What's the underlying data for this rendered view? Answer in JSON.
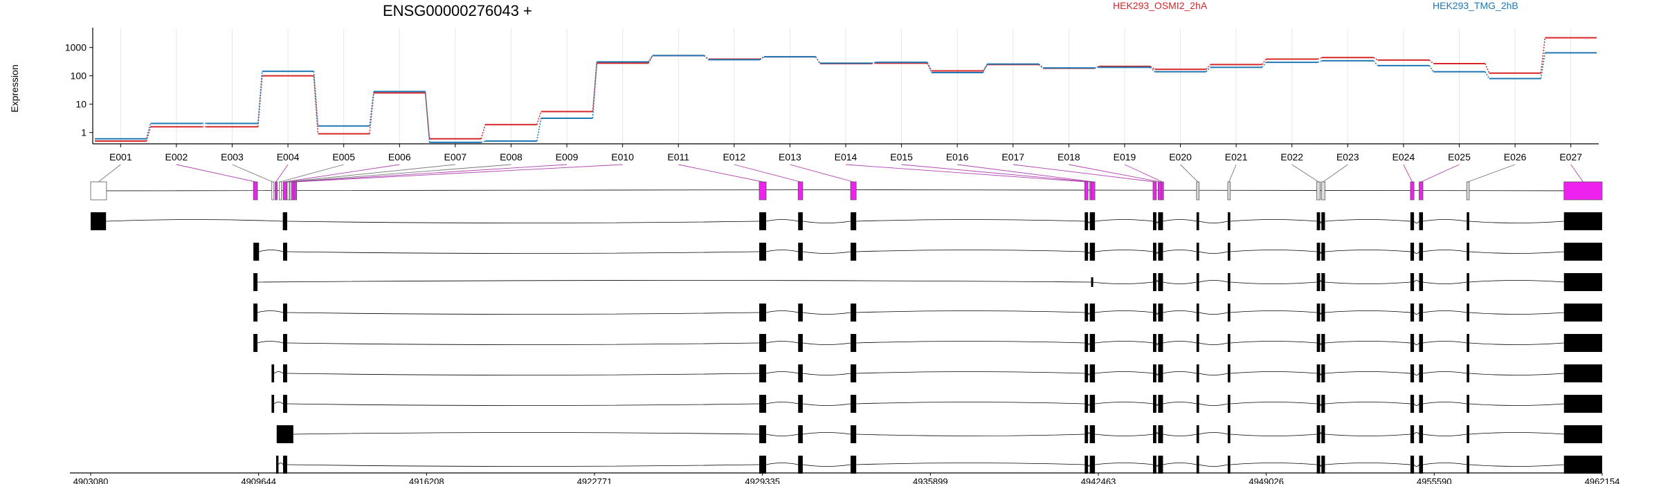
{
  "chart_data": {
    "type": "line",
    "title": "ENSG00000276043 +",
    "ylabel": "Expression",
    "y_scale": "log",
    "y_ticks": [
      1,
      10,
      100,
      1000
    ],
    "y_tick_labels": [
      "1",
      "10",
      "100",
      "1000"
    ],
    "grid": "vertical lines at exon centers",
    "legend_placement": "top-right",
    "exons": [
      "E001",
      "E002",
      "E003",
      "E004",
      "E005",
      "E006",
      "E007",
      "E008",
      "E009",
      "E010",
      "E011",
      "E012",
      "E013",
      "E014",
      "E015",
      "E016",
      "E017",
      "E018",
      "E019",
      "E020",
      "E021",
      "E022",
      "E023",
      "E024",
      "E025",
      "E026",
      "E027"
    ],
    "series": [
      {
        "name": "HEK293_OSMI2_2hA",
        "color": "#d62728",
        "values": [
          0.5,
          1.6,
          1.6,
          100,
          0.9,
          25,
          0.6,
          1.9,
          5.5,
          280,
          520,
          390,
          470,
          270,
          280,
          150,
          250,
          185,
          215,
          170,
          250,
          390,
          440,
          360,
          270,
          125,
          2200
        ]
      },
      {
        "name": "HEK293_TMG_2hB",
        "color": "#1f77b4",
        "values": [
          0.6,
          2.1,
          2.1,
          145,
          1.7,
          28,
          0.45,
          0.5,
          3.2,
          310,
          520,
          370,
          470,
          280,
          300,
          130,
          260,
          190,
          200,
          140,
          200,
          300,
          340,
          230,
          140,
          80,
          650
        ]
      }
    ],
    "genomic_axis": {
      "start": 4903080,
      "end": 4962154,
      "tick_labels": [
        "4903080",
        "4909644",
        "4916208",
        "4922771",
        "4929335",
        "4935899",
        "4942463",
        "4949026",
        "4955590",
        "4962154"
      ]
    },
    "exon_features": [
      {
        "id": "E001",
        "start": 4903080,
        "end": 4903700,
        "color": "#ffffff"
      },
      {
        "id": "E002",
        "start": 4909440,
        "end": 4909600,
        "color": "#ee22ee"
      },
      {
        "id": "E003",
        "start": 4910160,
        "end": 4910220,
        "color": "#ffffff"
      },
      {
        "id": "E004",
        "start": 4910290,
        "end": 4910350,
        "color": "#ee22ee"
      },
      {
        "id": "E005",
        "start": 4910450,
        "end": 4910530,
        "color": "#ffffff"
      },
      {
        "id": "E006",
        "start": 4910600,
        "end": 4910750,
        "color": "#ee22ee"
      },
      {
        "id": "E007",
        "start": 4910760,
        "end": 4910800,
        "color": "#ffffff"
      },
      {
        "id": "E008",
        "start": 4910870,
        "end": 4910930,
        "color": "#ffffff"
      },
      {
        "id": "E009",
        "start": 4910930,
        "end": 4911030,
        "color": "#ee22ee"
      },
      {
        "id": "E010",
        "start": 4911030,
        "end": 4911130,
        "color": "#ee22ee"
      },
      {
        "id": "E011",
        "start": 4929210,
        "end": 4929480,
        "color": "#ee22ee"
      },
      {
        "id": "E012",
        "start": 4930730,
        "end": 4930910,
        "color": "#ee22ee"
      },
      {
        "id": "E013",
        "start": 4932780,
        "end": 4933000,
        "color": "#ee22ee"
      },
      {
        "id": "E014",
        "start": 4941930,
        "end": 4942060,
        "color": "#ee22ee"
      },
      {
        "id": "E015",
        "start": 4942130,
        "end": 4942200,
        "color": "#ee22ee"
      },
      {
        "id": "E016",
        "start": 4942200,
        "end": 4942330,
        "color": "#ee22ee"
      },
      {
        "id": "E017",
        "start": 4944600,
        "end": 4944730,
        "color": "#ee22ee"
      },
      {
        "id": "E018",
        "start": 4944800,
        "end": 4944930,
        "color": "#ee22ee"
      },
      {
        "id": "E019",
        "start": 4944930,
        "end": 4944990,
        "color": "#ee22ee"
      },
      {
        "id": "E020",
        "start": 4946300,
        "end": 4946400,
        "color": "#dddddd"
      },
      {
        "id": "E021",
        "start": 4947520,
        "end": 4947620,
        "color": "#dddddd"
      },
      {
        "id": "E022",
        "start": 4951000,
        "end": 4951130,
        "color": "#dddddd"
      },
      {
        "id": "E023",
        "start": 4951180,
        "end": 4951320,
        "color": "#dddddd"
      },
      {
        "id": "E024",
        "start": 4954660,
        "end": 4954800,
        "color": "#ee22ee"
      },
      {
        "id": "E025",
        "start": 4955000,
        "end": 4955150,
        "color": "#ee22ee"
      },
      {
        "id": "E026",
        "start": 4956860,
        "end": 4956960,
        "color": "#dddddd"
      },
      {
        "id": "E027",
        "start": 4960660,
        "end": 4962154,
        "color": "#ee22ee"
      }
    ],
    "transcripts": [
      {
        "exons": [
          [
            4903080,
            4903680
          ],
          [
            4910590,
            4910760
          ],
          [
            4929210,
            4929480
          ],
          [
            4930730,
            4930910
          ],
          [
            4932780,
            4933000
          ],
          [
            4941930,
            4942060
          ],
          [
            4942130,
            4942330
          ],
          [
            4944600,
            4944730
          ],
          [
            4944800,
            4944990
          ],
          [
            4946300,
            4946400
          ],
          [
            4947520,
            4947620
          ],
          [
            4951000,
            4951130
          ],
          [
            4951180,
            4951320
          ],
          [
            4954660,
            4954800
          ],
          [
            4955000,
            4955150
          ],
          [
            4956860,
            4956960
          ],
          [
            4960660,
            4962154
          ]
        ]
      },
      {
        "exons": [
          [
            4909440,
            4909660
          ],
          [
            4910600,
            4910760
          ],
          [
            4929210,
            4929480
          ],
          [
            4930730,
            4930910
          ],
          [
            4932780,
            4933000
          ],
          [
            4941930,
            4942060
          ],
          [
            4942130,
            4942330
          ],
          [
            4944600,
            4944730
          ],
          [
            4944800,
            4944990
          ],
          [
            4946300,
            4946400
          ],
          [
            4947520,
            4947620
          ],
          [
            4951000,
            4951130
          ],
          [
            4951180,
            4951320
          ],
          [
            4954660,
            4954800
          ],
          [
            4955000,
            4955150
          ],
          [
            4956860,
            4956960
          ],
          [
            4960660,
            4962154
          ]
        ]
      },
      {
        "exons": [
          [
            4909440,
            4909600
          ],
          [
            4942180,
            4942220
          ],
          [
            4944600,
            4944730
          ],
          [
            4944800,
            4944990
          ],
          [
            4946300,
            4946400
          ],
          [
            4947520,
            4947620
          ],
          [
            4951000,
            4951130
          ],
          [
            4951180,
            4951320
          ],
          [
            4954660,
            4954800
          ],
          [
            4955000,
            4955150
          ],
          [
            4956860,
            4956960
          ],
          [
            4960660,
            4962154
          ]
        ]
      },
      {
        "exons": [
          [
            4909440,
            4909600
          ],
          [
            4910600,
            4910760
          ],
          [
            4929210,
            4929480
          ],
          [
            4930730,
            4930910
          ],
          [
            4932780,
            4933000
          ],
          [
            4941930,
            4942060
          ],
          [
            4942130,
            4942330
          ],
          [
            4944600,
            4944730
          ],
          [
            4944800,
            4944990
          ],
          [
            4946300,
            4946400
          ],
          [
            4947520,
            4947620
          ],
          [
            4951000,
            4951130
          ],
          [
            4951180,
            4951320
          ],
          [
            4954660,
            4954800
          ],
          [
            4955000,
            4955150
          ],
          [
            4956860,
            4956960
          ],
          [
            4960660,
            4962154
          ]
        ]
      },
      {
        "exons": [
          [
            4909440,
            4909600
          ],
          [
            4910600,
            4910760
          ],
          [
            4929210,
            4929480
          ],
          [
            4930730,
            4930910
          ],
          [
            4932780,
            4933000
          ],
          [
            4941930,
            4942060
          ],
          [
            4942130,
            4942330
          ],
          [
            4944600,
            4944730
          ],
          [
            4944800,
            4944990
          ],
          [
            4946300,
            4946400
          ],
          [
            4947520,
            4947620
          ],
          [
            4951000,
            4951130
          ],
          [
            4951180,
            4951320
          ],
          [
            4954660,
            4954800
          ],
          [
            4955000,
            4955150
          ],
          [
            4956860,
            4956960
          ],
          [
            4960660,
            4962154
          ]
        ]
      },
      {
        "exons": [
          [
            4910150,
            4910250
          ],
          [
            4910600,
            4910760
          ],
          [
            4929210,
            4929480
          ],
          [
            4930730,
            4930910
          ],
          [
            4932780,
            4933000
          ],
          [
            4941930,
            4942060
          ],
          [
            4942130,
            4942330
          ],
          [
            4944600,
            4944730
          ],
          [
            4944800,
            4944990
          ],
          [
            4946300,
            4946400
          ],
          [
            4947520,
            4947620
          ],
          [
            4951000,
            4951130
          ],
          [
            4951180,
            4951320
          ],
          [
            4954660,
            4954800
          ],
          [
            4955000,
            4955150
          ],
          [
            4956860,
            4956960
          ],
          [
            4960660,
            4962154
          ]
        ]
      },
      {
        "exons": [
          [
            4910150,
            4910250
          ],
          [
            4910600,
            4910760
          ],
          [
            4929210,
            4929480
          ],
          [
            4930730,
            4930910
          ],
          [
            4932780,
            4933000
          ],
          [
            4941930,
            4942060
          ],
          [
            4942130,
            4942330
          ],
          [
            4944600,
            4944730
          ],
          [
            4944800,
            4944990
          ],
          [
            4946300,
            4946400
          ],
          [
            4947520,
            4947620
          ],
          [
            4951000,
            4951130
          ],
          [
            4951180,
            4951320
          ],
          [
            4954660,
            4954800
          ],
          [
            4955000,
            4955150
          ],
          [
            4956860,
            4956960
          ],
          [
            4960660,
            4962154
          ]
        ]
      },
      {
        "exons": [
          [
            4910350,
            4911000
          ],
          [
            4929210,
            4929480
          ],
          [
            4930730,
            4930910
          ],
          [
            4932780,
            4933000
          ],
          [
            4941930,
            4942060
          ],
          [
            4942130,
            4942330
          ],
          [
            4944600,
            4944730
          ],
          [
            4944800,
            4944990
          ],
          [
            4946300,
            4946400
          ],
          [
            4947520,
            4947620
          ],
          [
            4951000,
            4951130
          ],
          [
            4951180,
            4951320
          ],
          [
            4954660,
            4954800
          ],
          [
            4955000,
            4955150
          ],
          [
            4956860,
            4956960
          ],
          [
            4960660,
            4962154
          ]
        ]
      },
      {
        "exons": [
          [
            4910330,
            4910420
          ],
          [
            4910600,
            4910760
          ],
          [
            4929210,
            4929480
          ],
          [
            4930730,
            4930910
          ],
          [
            4932780,
            4933000
          ],
          [
            4941930,
            4942060
          ],
          [
            4942130,
            4942330
          ],
          [
            4944600,
            4944730
          ],
          [
            4944800,
            4944990
          ],
          [
            4946300,
            4946400
          ],
          [
            4947520,
            4947620
          ],
          [
            4951000,
            4951130
          ],
          [
            4951180,
            4951320
          ],
          [
            4954660,
            4954800
          ],
          [
            4955000,
            4955150
          ],
          [
            4956860,
            4956960
          ],
          [
            4960660,
            4962154
          ]
        ]
      }
    ]
  }
}
